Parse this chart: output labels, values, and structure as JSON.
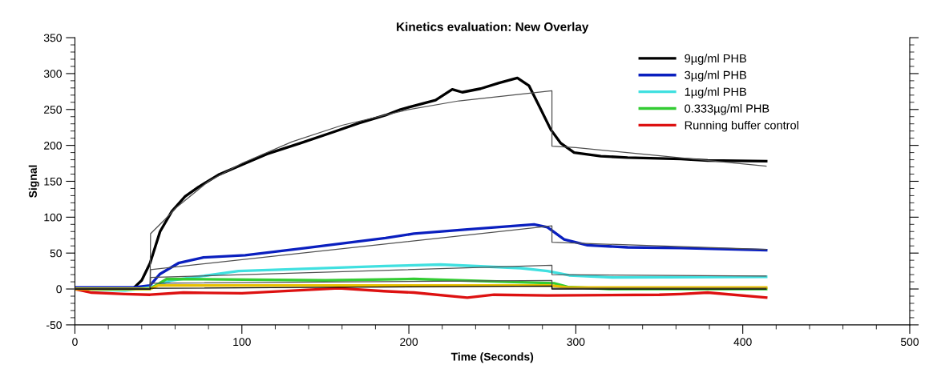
{
  "chart_data": {
    "type": "line",
    "title": "Kinetics evaluation: New Overlay",
    "xlabel": "Time (Seconds)",
    "ylabel": "Signal",
    "xlim": [
      0,
      500
    ],
    "xticks": [
      0,
      100,
      200,
      300,
      400,
      500
    ],
    "ylim": [
      -50,
      350
    ],
    "yticks": [
      -50,
      0,
      50,
      100,
      150,
      200,
      250,
      300,
      350
    ],
    "grid": false,
    "legend": "top right",
    "series": [
      {
        "name": "9µg/ml PHB",
        "color": "#000000",
        "x": [
          0,
          20,
          33,
          35,
          40,
          45,
          51,
          58,
          66,
          74,
          86,
          99,
          115,
          135,
          154,
          170,
          186,
          195,
          216,
          226,
          232,
          243,
          254,
          265,
          272,
          278,
          285,
          291,
          299,
          315,
          331,
          363,
          379,
          414
        ],
        "values": [
          0,
          0,
          0,
          1,
          12,
          36,
          80,
          108,
          129,
          142,
          159,
          172,
          188,
          203,
          218,
          231,
          242,
          250,
          263,
          278,
          274,
          279,
          287,
          294,
          283,
          255,
          222,
          203,
          190,
          185,
          183,
          181,
          179,
          178
        ]
      },
      {
        "name": "3µg/ml PHB",
        "color": "#0a1fbf",
        "x": [
          0,
          20,
          35,
          45,
          51,
          62,
          77,
          102,
          138,
          186,
          203,
          235,
          275,
          283,
          293,
          307,
          331,
          363,
          414
        ],
        "values": [
          2,
          2,
          2,
          5,
          21,
          36,
          44,
          47,
          57,
          71,
          77,
          83,
          90,
          86,
          69,
          61,
          58,
          57,
          54
        ]
      },
      {
        "name": "1µg/ml PHB",
        "color": "#40e0e0",
        "x": [
          0,
          30,
          45,
          58,
          98,
          186,
          219,
          267,
          283,
          296,
          323,
          414
        ],
        "values": [
          0,
          -2,
          2,
          12,
          25,
          32,
          34,
          29,
          25,
          19,
          16,
          17
        ]
      },
      {
        "name": "0.333µg/ml PHB",
        "color": "#33cc33",
        "x": [
          0,
          45,
          55,
          150,
          203,
          287,
          295,
          320,
          414
        ],
        "values": [
          0,
          0,
          14,
          12,
          14,
          8,
          3,
          0,
          0
        ]
      },
      {
        "name": "Running buffer control",
        "color": "#dd1111",
        "x": [
          0,
          10,
          30,
          45,
          65,
          100,
          158,
          185,
          203,
          235,
          251,
          283,
          350,
          363,
          379,
          414
        ],
        "values": [
          0,
          -5,
          -7,
          -8,
          -5,
          -6,
          1,
          -3,
          -5,
          -12,
          -8,
          -9,
          -8,
          -7,
          -5,
          -12
        ]
      },
      {
        "color": "#e8c000",
        "x": [
          0,
          45,
          50,
          285,
          295,
          414
        ],
        "values": [
          0,
          0,
          5,
          5,
          2,
          2
        ]
      },
      {
        "color": "#505050",
        "x": [
          0,
          45,
          45.3,
          54,
          60,
          80,
          100,
          130,
          160,
          200,
          230,
          285.7,
          285.7,
          300,
          414
        ],
        "values": [
          0,
          0,
          77,
          97,
          112,
          150,
          175,
          205,
          228,
          250,
          262,
          276,
          199,
          197,
          171
        ]
      },
      {
        "color": "#505050",
        "x": [
          0,
          45,
          45.3,
          285.7,
          285.7,
          414
        ],
        "values": [
          0,
          0,
          27,
          88,
          65,
          55
        ]
      },
      {
        "color": "#505050",
        "x": [
          0,
          45,
          45.3,
          285.7,
          285.7,
          414
        ],
        "values": [
          0,
          0,
          16,
          33,
          20,
          18
        ]
      },
      {
        "color": "#505050",
        "x": [
          0,
          45,
          45.3,
          285.7,
          285.7,
          414
        ],
        "values": [
          0,
          0,
          8,
          12,
          1,
          1
        ]
      },
      {
        "color": "#000000",
        "x": [
          0,
          45,
          45.3,
          285.7,
          285.7,
          414
        ],
        "values": [
          0,
          0,
          1,
          4,
          0,
          0
        ]
      }
    ]
  }
}
